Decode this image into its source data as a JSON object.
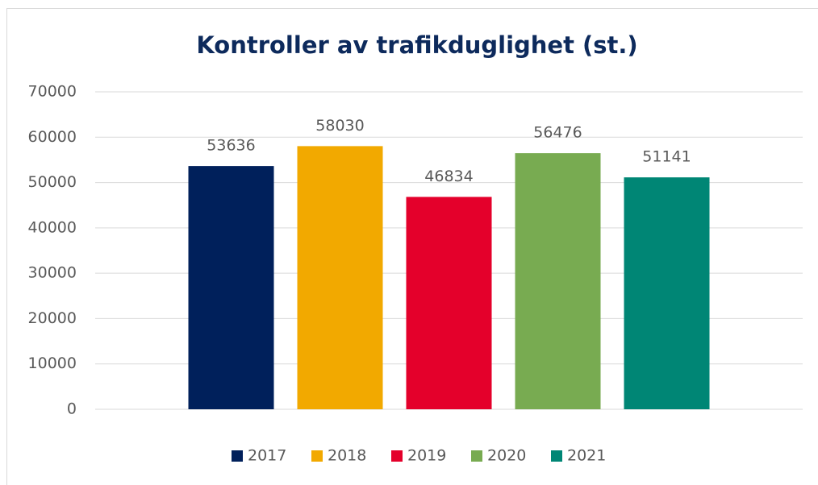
{
  "chart_data": {
    "type": "bar",
    "title": "Kontroller av trafikduglighet (st.)",
    "categories": [
      null
    ],
    "series": [
      {
        "name": "2017",
        "color": "#00205b",
        "values": [
          53636
        ]
      },
      {
        "name": "2018",
        "color": "#f2a900",
        "values": [
          58030
        ]
      },
      {
        "name": "2019",
        "color": "#e4002b",
        "values": [
          46834
        ]
      },
      {
        "name": "2020",
        "color": "#78ab51",
        "values": [
          56476
        ]
      },
      {
        "name": "2021",
        "color": "#008675",
        "values": [
          51141
        ]
      }
    ],
    "ylim": [
      0,
      70000
    ],
    "yticks": [
      0,
      10000,
      20000,
      30000,
      40000,
      50000,
      60000,
      70000
    ],
    "grid": true,
    "legend": "bottom"
  }
}
